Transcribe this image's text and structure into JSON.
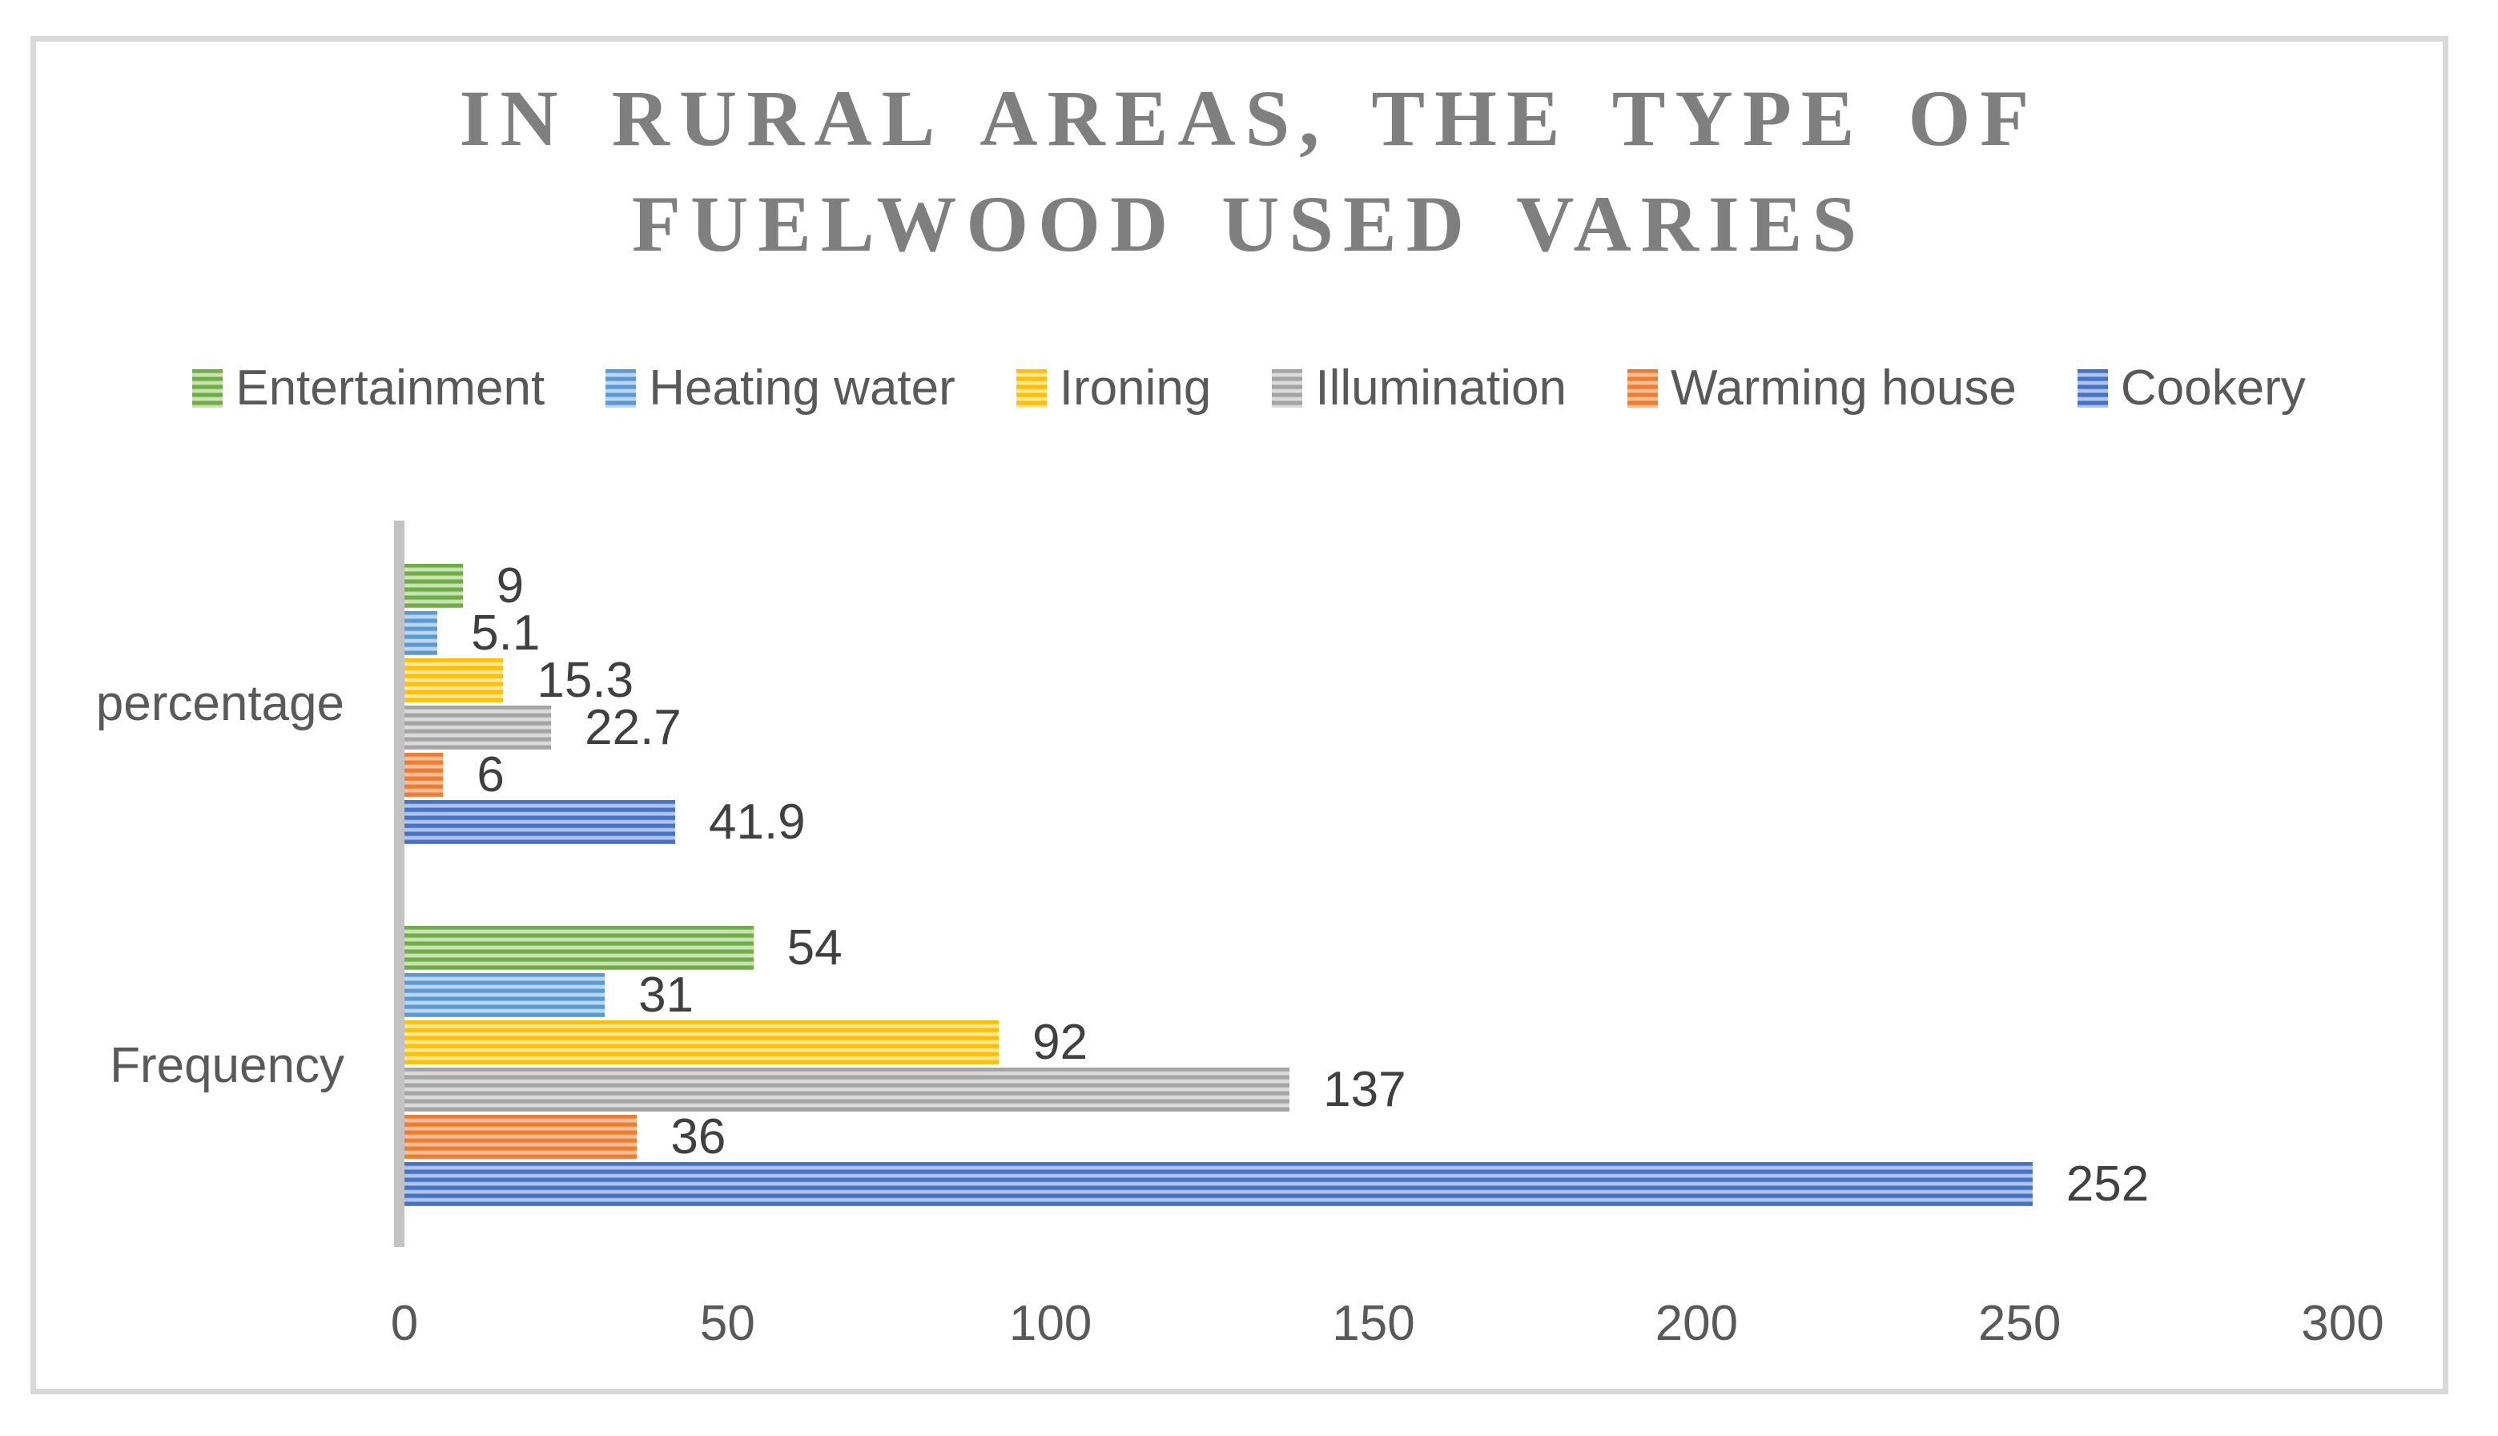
{
  "chart_data": {
    "type": "bar",
    "orientation": "horizontal",
    "title": "IN RURAL AREAS, THE TYPE OF FUELWOOD USED VARIES",
    "categories": [
      "percentage",
      "Frequency"
    ],
    "series": [
      {
        "name": "Entertainment",
        "color": "#70AD47",
        "color_light": "#C9E3B5",
        "values": [
          9,
          54
        ],
        "labels": [
          "9",
          "54"
        ]
      },
      {
        "name": "Heating water",
        "color": "#5B9BD5",
        "color_light": "#BDD7EE",
        "values": [
          5.1,
          31
        ],
        "labels": [
          "5.1",
          "31"
        ]
      },
      {
        "name": "Ironing",
        "color": "#FFC000",
        "color_light": "#FFE699",
        "values": [
          15.3,
          92
        ],
        "labels": [
          "15.3",
          "92"
        ]
      },
      {
        "name": "Illumination",
        "color": "#A5A5A5",
        "color_light": "#DBDBDB",
        "values": [
          22.7,
          137
        ],
        "labels": [
          "22.7",
          "137"
        ]
      },
      {
        "name": "Warming house",
        "color": "#ED7D31",
        "color_light": "#F6BE98",
        "values": [
          6,
          36
        ],
        "labels": [
          "6",
          "36"
        ]
      },
      {
        "name": "Cookery",
        "color": "#4472C4",
        "color_light": "#B1C3E9",
        "values": [
          41.9,
          252
        ],
        "labels": [
          "41.9",
          "252"
        ]
      }
    ],
    "x_axis": {
      "min": 0,
      "max": 300,
      "tick_step": 50,
      "tick_labels": [
        "0",
        "50",
        "100",
        "150",
        "200",
        "250",
        "300"
      ]
    },
    "legend_position": "top",
    "grid": false,
    "bar_pattern": "horizontal-stripes"
  }
}
